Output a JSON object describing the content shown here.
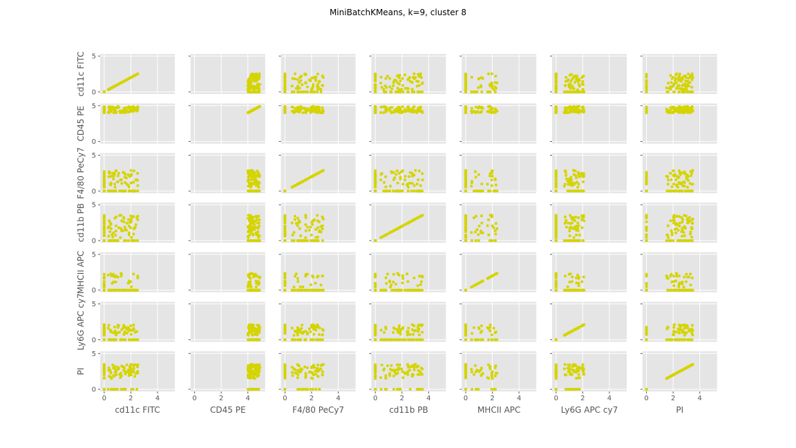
{
  "chart_data": {
    "type": "scatter",
    "title": "MiniBatchKMeans, k=9, cluster 8",
    "variables": [
      "cd11c FITC",
      "CD45 PE",
      "F4/80 PeCy7",
      "cd11b PB",
      "MHCII APC",
      "Ly6G APC cy7",
      "PI"
    ],
    "xlim": [
      -0.3,
      5.3
    ],
    "ylim": [
      -0.3,
      5.3
    ],
    "x_ticks": [
      "0",
      "2",
      "4"
    ],
    "y_ticks": [
      "0",
      "5"
    ],
    "grid": true,
    "point_color": "#d4d400",
    "panel_background": "#e5e5e5",
    "profiles": {
      "cd11c FITC": {
        "zero_frac": 0.35,
        "lo": 0.3,
        "hi": 2.7
      },
      "CD45 PE": {
        "zero_frac": 0.0,
        "lo": 4.0,
        "hi": 4.9
      },
      "F4/80 PeCy7": {
        "zero_frac": 0.4,
        "lo": 0.5,
        "hi": 2.9
      },
      "cd11b PB": {
        "zero_frac": 0.3,
        "lo": 0.4,
        "hi": 3.6
      },
      "MHCII APC": {
        "zero_frac": 0.6,
        "lo": 0.4,
        "hi": 2.4
      },
      "Ly6G APC cy7": {
        "zero_frac": 0.4,
        "lo": 0.6,
        "hi": 2.1
      },
      "PI": {
        "zero_frac": 0.25,
        "lo": 1.5,
        "hi": 3.5
      }
    }
  }
}
